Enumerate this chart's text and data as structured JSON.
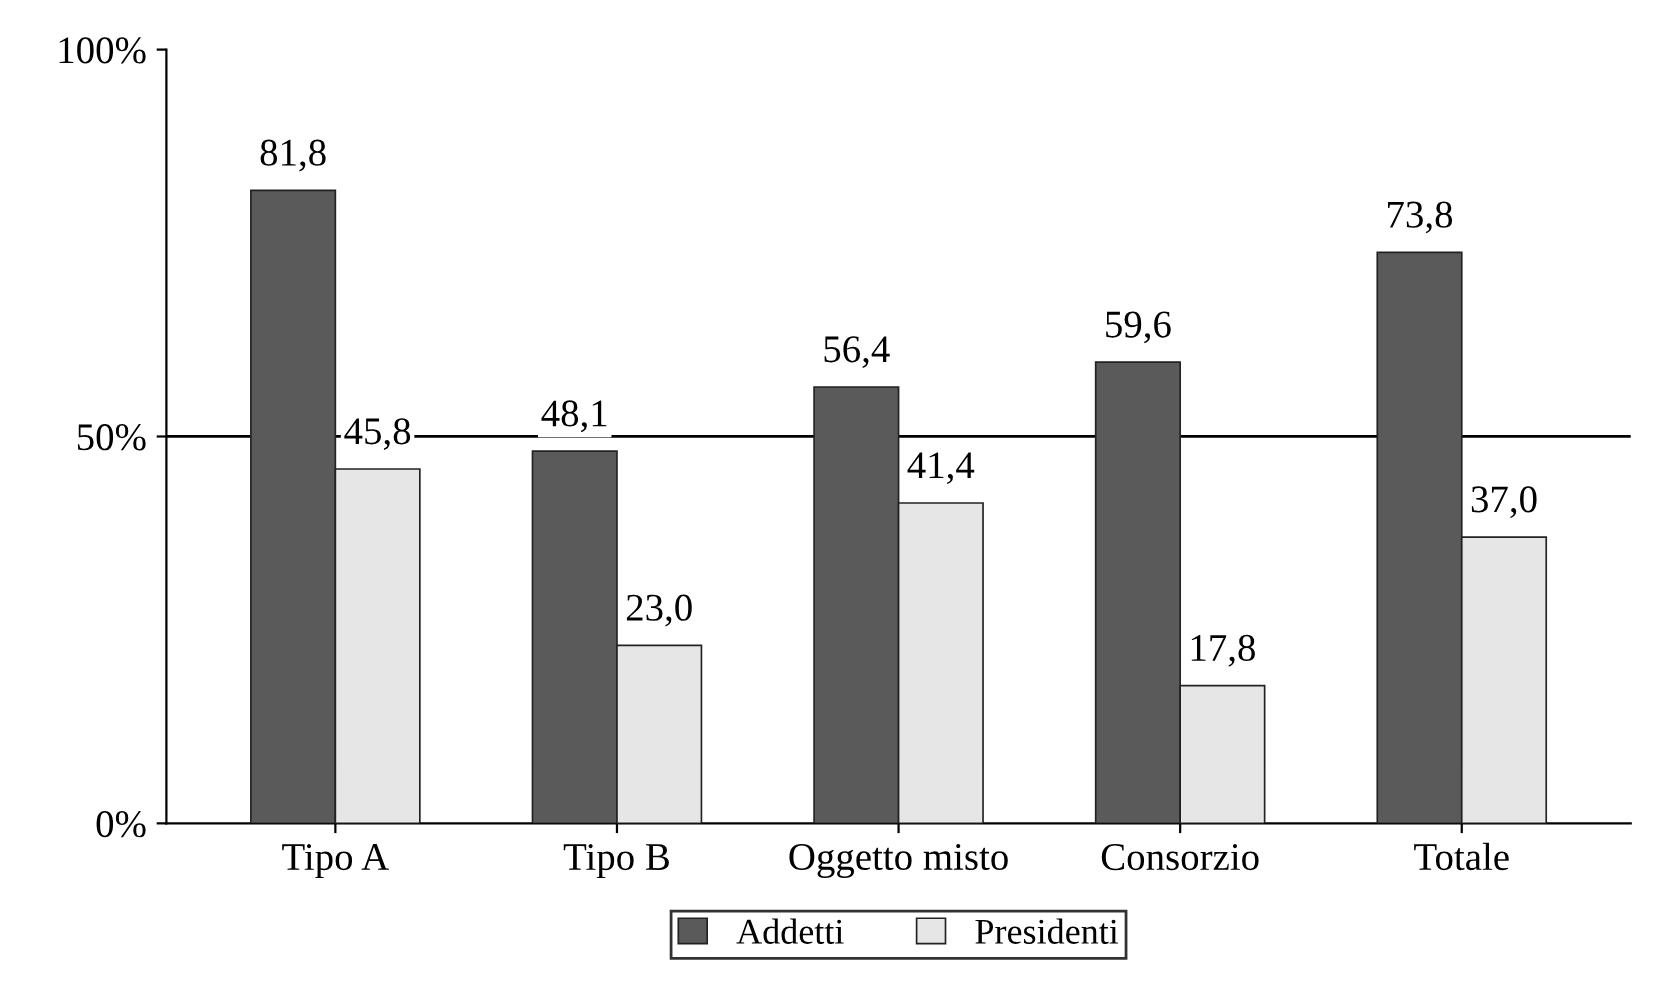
{
  "chart_data": {
    "type": "bar",
    "categories": [
      "Tipo A",
      "Tipo B",
      "Oggetto misto",
      "Consorzio",
      "Totale"
    ],
    "series": [
      {
        "name": "Addetti",
        "color": "#5a5a5a",
        "values": [
          81.8,
          48.1,
          56.4,
          59.6,
          73.8
        ],
        "value_labels": [
          "81,8",
          "48,1",
          "56,4",
          "59,6",
          "73,8"
        ]
      },
      {
        "name": "Presidenti",
        "color": "#e6e6e6",
        "values": [
          45.8,
          23.0,
          41.4,
          17.8,
          37.0
        ],
        "value_labels": [
          "45,8",
          "23,0",
          "41,4",
          "17,8",
          "37,0"
        ]
      }
    ],
    "ylim": [
      0,
      100
    ],
    "yticks": [
      {
        "value": 0,
        "label": "0%"
      },
      {
        "value": 50,
        "label": "50%"
      },
      {
        "value": 100,
        "label": "100%"
      }
    ],
    "ref_lines": [
      {
        "axis": "y",
        "value": 50,
        "label": null
      }
    ],
    "grid": false,
    "legend": "bottom"
  }
}
